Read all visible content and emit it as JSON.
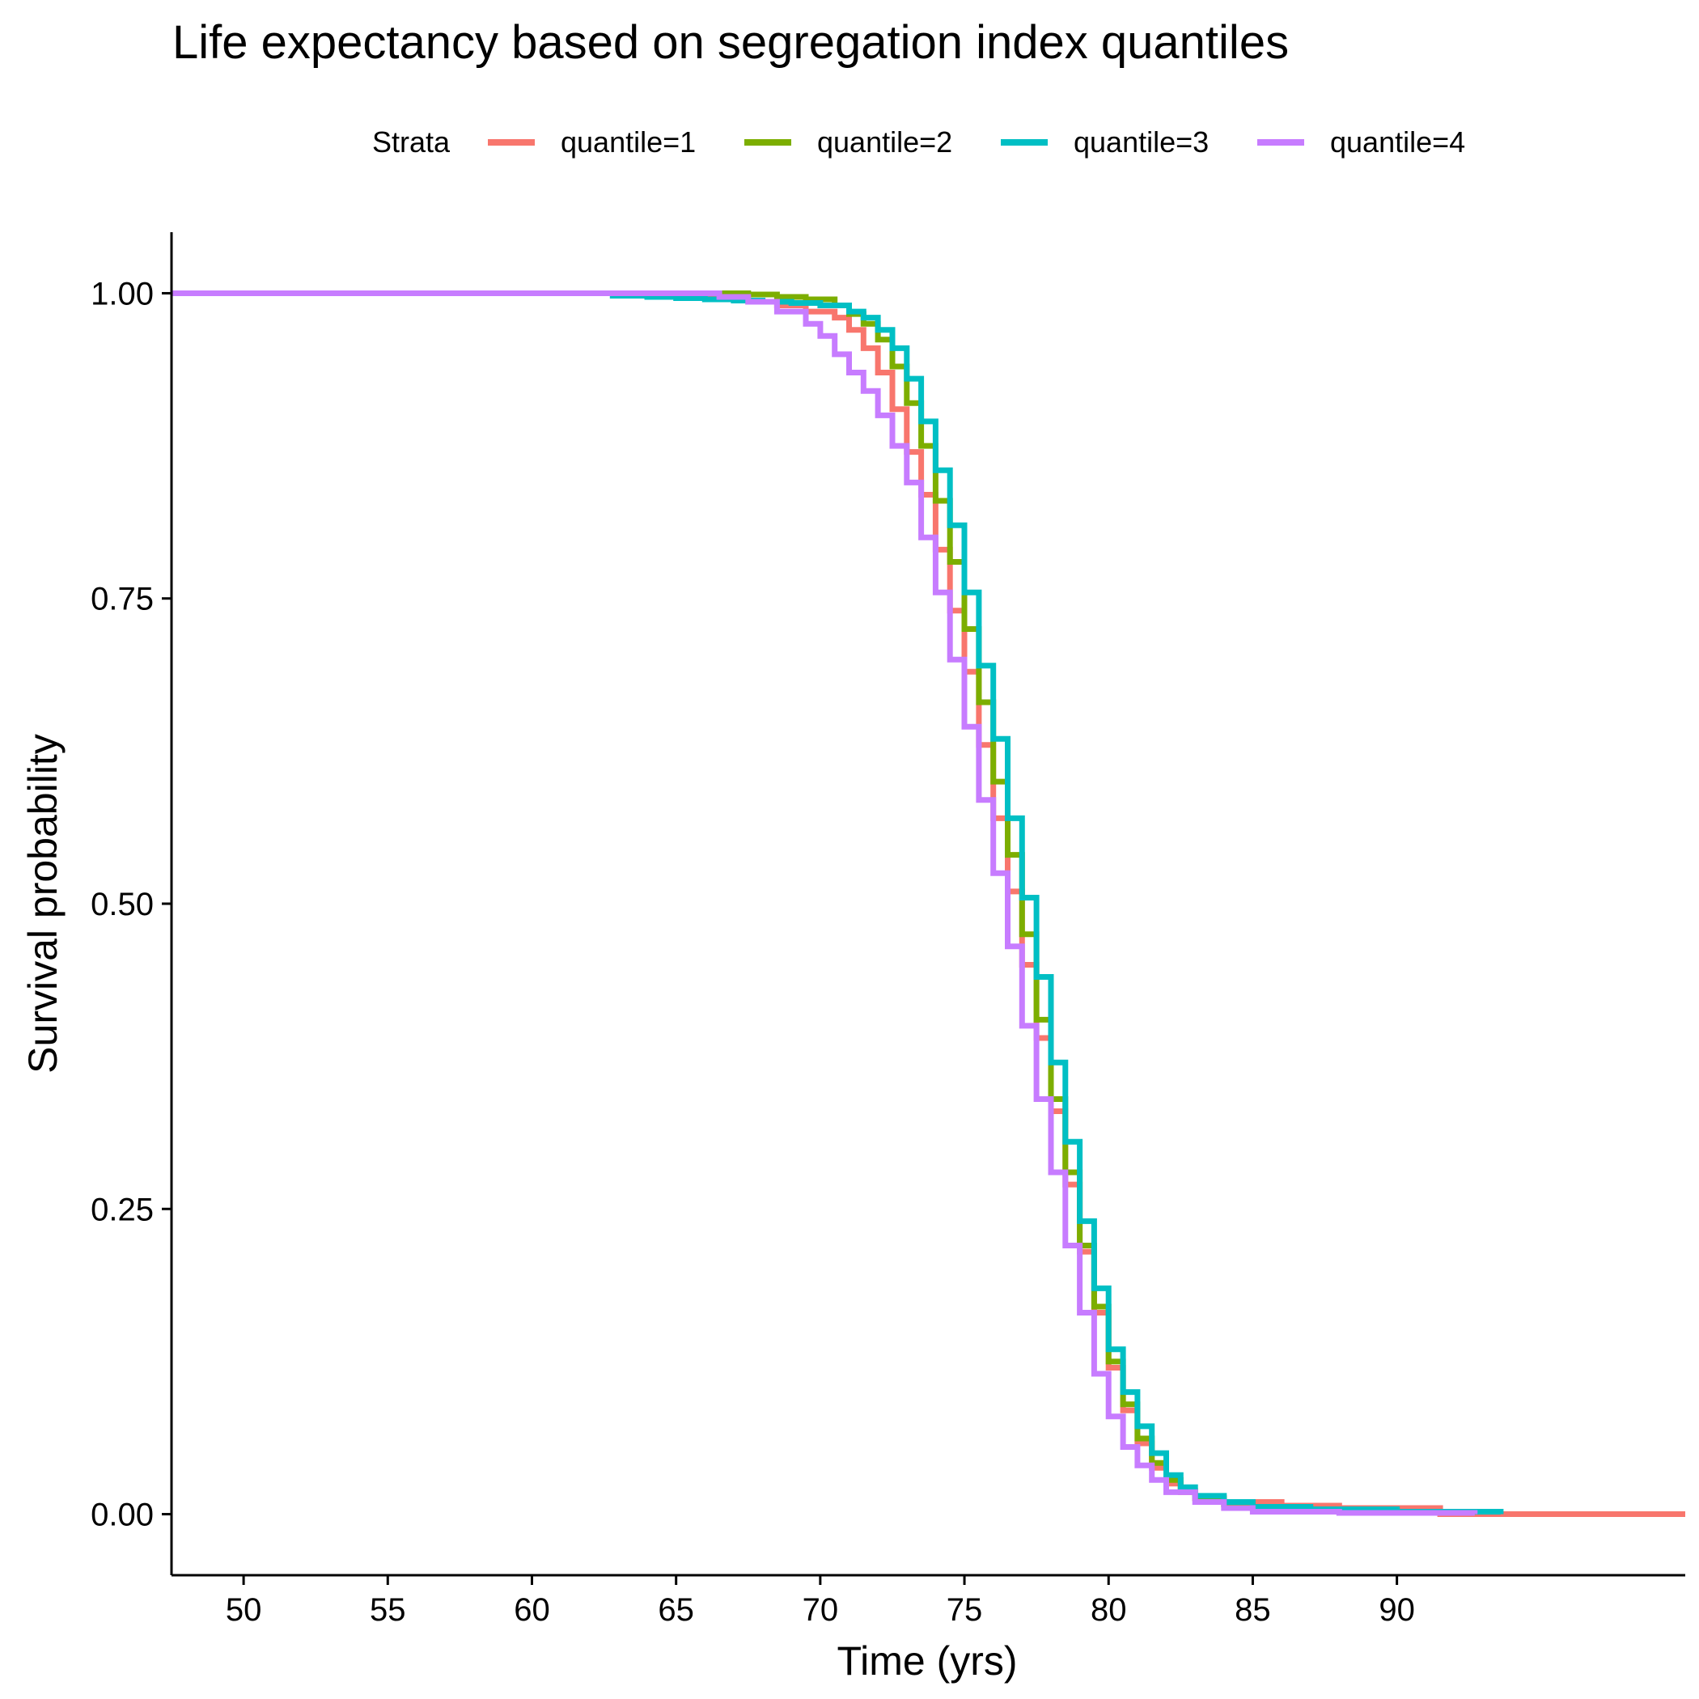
{
  "chart_data": {
    "type": "line",
    "step": true,
    "title": "Life expectancy based on segregation index quantiles",
    "xlabel": "Time (yrs)",
    "ylabel": "Survival probability",
    "xlim": [
      47.5,
      100
    ],
    "ylim": [
      -0.05,
      1.05
    ],
    "x_ticks": [
      50,
      55,
      60,
      65,
      70,
      75,
      80,
      85,
      90
    ],
    "y_ticks": [
      0,
      0.25,
      0.5,
      0.75,
      1.0
    ],
    "y_tick_labels": [
      "0.00",
      "0.25",
      "0.50",
      "0.75",
      "1.00"
    ],
    "grid": false,
    "legend": {
      "title": "Strata",
      "placement": "top",
      "entries": [
        "quantile=1",
        "quantile=2",
        "quantile=3",
        "quantile=4"
      ]
    },
    "series": [
      {
        "name": "quantile=1",
        "color": "#F8766D",
        "x": [
          47.5,
          63,
          66,
          67.5,
          68.5,
          69.5,
          70.5,
          71,
          71.5,
          72,
          72.5,
          73,
          73.5,
          74,
          74.5,
          75,
          75.5,
          76,
          76.5,
          77,
          77.5,
          78,
          78.5,
          79,
          79.5,
          80,
          80.5,
          81,
          81.5,
          82,
          82.5,
          83,
          84,
          85,
          86,
          88,
          90,
          91.5,
          100
        ],
        "y": [
          1.0,
          1.0,
          0.997,
          0.993,
          0.99,
          0.985,
          0.98,
          0.97,
          0.955,
          0.935,
          0.905,
          0.87,
          0.835,
          0.79,
          0.74,
          0.69,
          0.63,
          0.57,
          0.51,
          0.45,
          0.39,
          0.33,
          0.27,
          0.215,
          0.165,
          0.12,
          0.085,
          0.058,
          0.038,
          0.025,
          0.018,
          0.013,
          0.01,
          0.01,
          0.007,
          0.005,
          0.005,
          0.0,
          0.0
        ]
      },
      {
        "name": "quantile=2",
        "color": "#7CAE00",
        "x": [
          47.5,
          66,
          67.5,
          68.5,
          69.5,
          70.5,
          71,
          71.5,
          72,
          72.5,
          73,
          73.5,
          74,
          74.5,
          75,
          75.5,
          76,
          76.5,
          77,
          77.5,
          78,
          78.5,
          79,
          79.5,
          80,
          80.5,
          81,
          81.5,
          82,
          82.5,
          83,
          84,
          85,
          87,
          90,
          93
        ],
        "y": [
          1.0,
          1.0,
          0.999,
          0.997,
          0.995,
          0.99,
          0.983,
          0.975,
          0.962,
          0.94,
          0.91,
          0.875,
          0.83,
          0.78,
          0.725,
          0.665,
          0.6,
          0.54,
          0.475,
          0.405,
          0.34,
          0.28,
          0.22,
          0.17,
          0.125,
          0.09,
          0.062,
          0.042,
          0.028,
          0.019,
          0.013,
          0.008,
          0.005,
          0.003,
          0.002,
          0.0
        ]
      },
      {
        "name": "quantile=3",
        "color": "#00BFC4",
        "x": [
          47.5,
          62.8,
          64,
          65,
          66,
          67,
          68,
          69,
          70,
          71,
          71.5,
          72,
          72.5,
          73,
          73.5,
          74,
          74.5,
          75,
          75.5,
          76,
          76.5,
          77,
          77.5,
          78,
          78.5,
          79,
          79.5,
          80,
          80.5,
          81,
          81.5,
          82,
          82.5,
          83,
          84,
          85,
          87,
          90,
          93.6
        ],
        "y": [
          1.0,
          0.998,
          0.997,
          0.996,
          0.995,
          0.994,
          0.993,
          0.992,
          0.99,
          0.985,
          0.98,
          0.97,
          0.955,
          0.93,
          0.895,
          0.855,
          0.81,
          0.755,
          0.695,
          0.635,
          0.57,
          0.505,
          0.44,
          0.37,
          0.305,
          0.24,
          0.185,
          0.135,
          0.1,
          0.072,
          0.05,
          0.032,
          0.022,
          0.015,
          0.01,
          0.006,
          0.004,
          0.002,
          0.0
        ]
      },
      {
        "name": "quantile=4",
        "color": "#C77CFF",
        "x": [
          47.5,
          65,
          66.5,
          67.5,
          68.5,
          69.5,
          70,
          70.5,
          71,
          71.5,
          72,
          72.5,
          73,
          73.5,
          74,
          74.5,
          75,
          75.5,
          76,
          76.5,
          77,
          77.5,
          78,
          78.5,
          79,
          79.5,
          80,
          80.5,
          81,
          81.5,
          82,
          83,
          84,
          85,
          88,
          92.7
        ],
        "y": [
          1.0,
          1.0,
          0.997,
          0.993,
          0.985,
          0.975,
          0.965,
          0.95,
          0.935,
          0.92,
          0.9,
          0.875,
          0.845,
          0.8,
          0.755,
          0.7,
          0.645,
          0.585,
          0.525,
          0.465,
          0.4,
          0.34,
          0.28,
          0.22,
          0.165,
          0.115,
          0.08,
          0.055,
          0.04,
          0.028,
          0.018,
          0.01,
          0.005,
          0.002,
          0.001,
          0.0
        ]
      }
    ]
  }
}
